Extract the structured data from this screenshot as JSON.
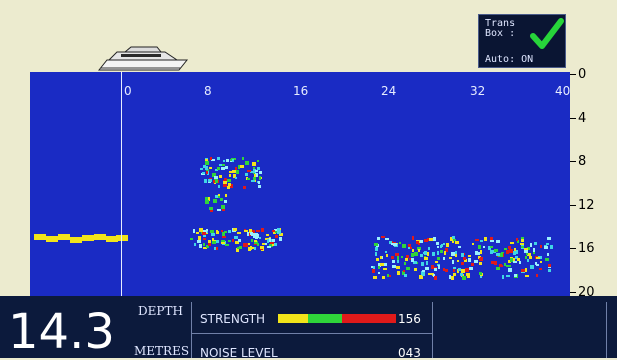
{
  "trans_box": {
    "label": "Trans\nBox :",
    "auto": "Auto: ON",
    "status_color": "#27d43a"
  },
  "range_axis": [
    "0",
    "8",
    "16",
    "24",
    "32",
    "40"
  ],
  "depth_axis": [
    "0",
    "4",
    "8",
    "12",
    "16",
    "20"
  ],
  "readout": {
    "depth_value": "14.3",
    "depth_label": "DEPTH",
    "units_label": "METRES",
    "strength_label": "STRENGTH",
    "strength_value": "156",
    "noise_label": "NOISE LEVEL",
    "noise_value": "043"
  },
  "colors": {
    "water": "#1a2bc4",
    "bottom_history": "#f2e41a"
  }
}
